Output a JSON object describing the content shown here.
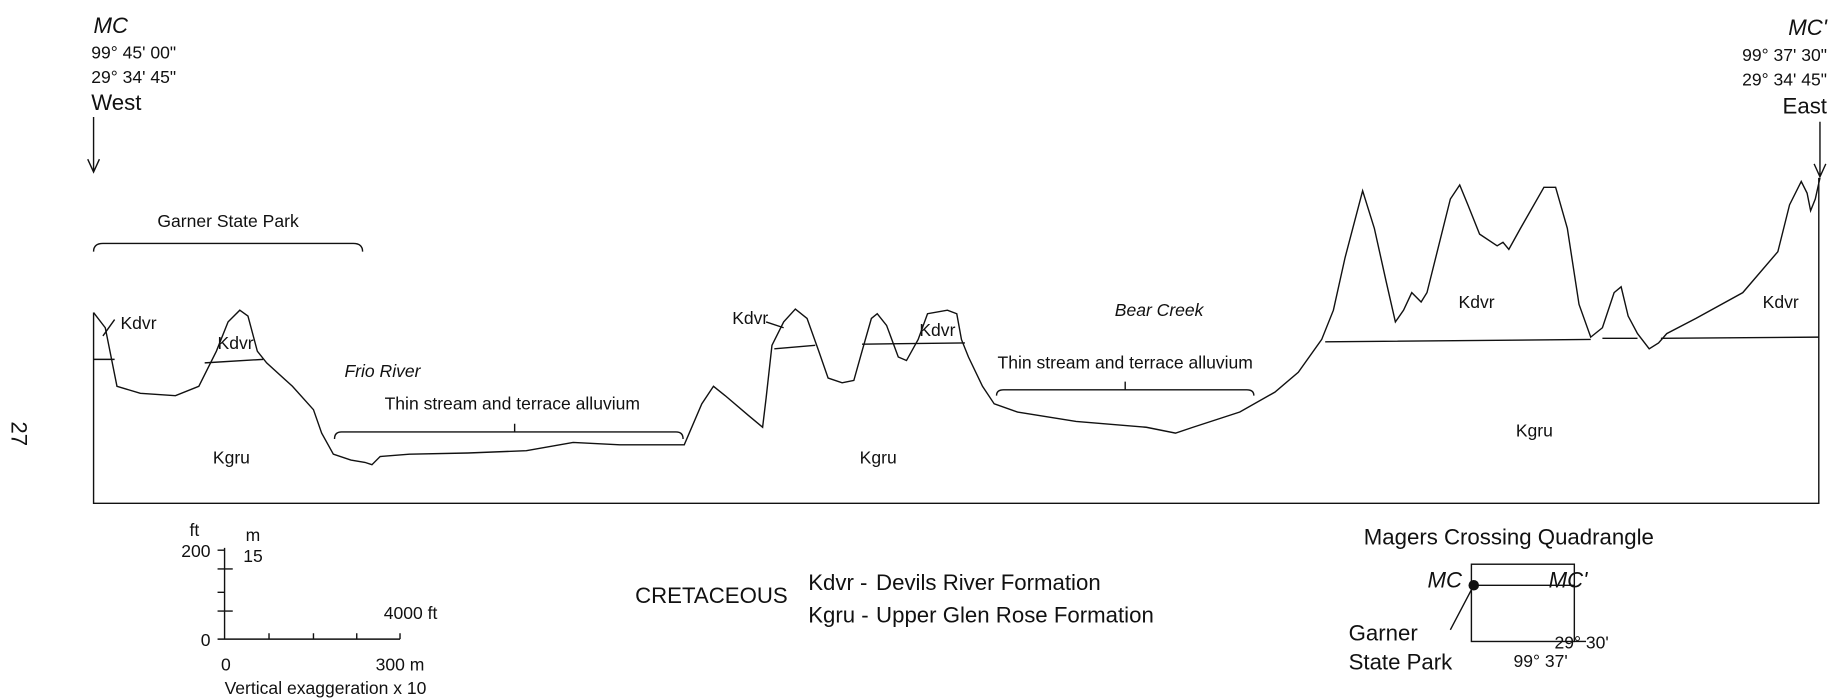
{
  "endpoints": {
    "west": {
      "label": "MC",
      "lon": "99° 45' 00\"",
      "lat": "29° 34' 45\"",
      "direction": "West"
    },
    "east": {
      "label": "MC'",
      "lon": "99° 37' 30\"",
      "lat": "29° 34' 45\"",
      "direction": "East"
    }
  },
  "page_number": "27",
  "section": {
    "park": "Garner State Park",
    "rivers": [
      "Frio River",
      "Bear Creek"
    ],
    "alluvium": [
      "Thin stream and terrace alluvium",
      "Thin stream and terrace alluvium"
    ],
    "units": [
      "Kdvr",
      "Kdvr",
      "Kdvr",
      "Kdvr",
      "Kdvr",
      "Kdvr",
      "Kgru",
      "Kgru",
      "Kgru"
    ]
  },
  "scale": {
    "ft_label": "ft",
    "m_label": "m",
    "ft_ticks": [
      "200",
      "0"
    ],
    "m_tick": "15",
    "h_ticks": [
      "0",
      "300 m"
    ],
    "ft_length": "4000 ft",
    "note": "Vertical exaggeration x 10"
  },
  "legend": {
    "period": "CRETACEOUS",
    "entries": [
      {
        "code": "Kdvr -",
        "name": "Devils River Formation"
      },
      {
        "code": "Kgru -",
        "name": "Upper Glen Rose Formation"
      }
    ]
  },
  "inset": {
    "title": "Magers Crossing Quadrangle",
    "west": "MC",
    "east": "MC'",
    "park": [
      "Garner",
      "State Park"
    ],
    "lat": "29° 30'",
    "lon": "99° 37'"
  }
}
